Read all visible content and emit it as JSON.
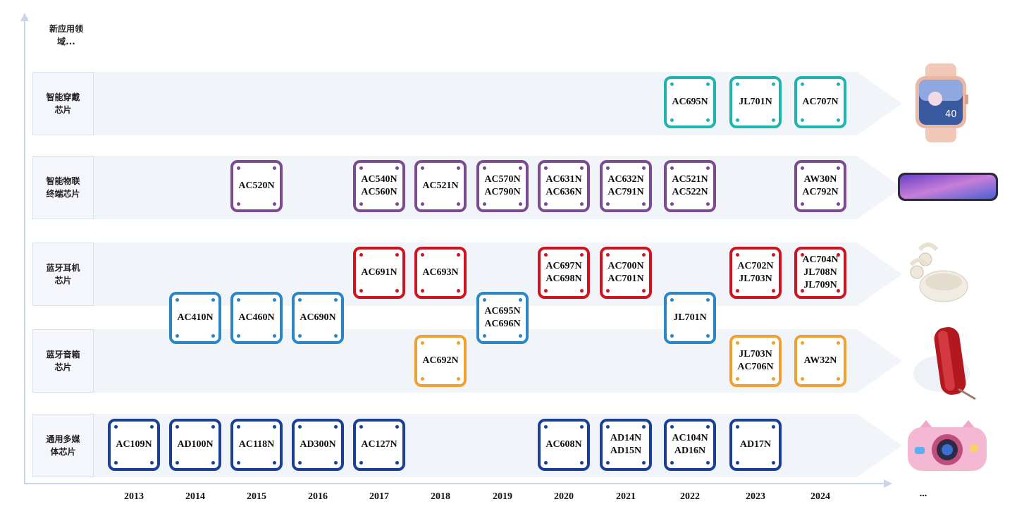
{
  "diagram": {
    "top_label": [
      "新应用领",
      "域..."
    ],
    "ellipsis": "...",
    "years": [
      "2013",
      "2014",
      "2015",
      "2016",
      "2017",
      "2018",
      "2019",
      "2020",
      "2021",
      "2022",
      "2023",
      "2024"
    ],
    "categories": [
      {
        "id": "wearable",
        "lines": [
          "智能穿戴",
          "芯片"
        ]
      },
      {
        "id": "iot",
        "lines": [
          "智能物联",
          "终端芯片"
        ]
      },
      {
        "id": "earbuds",
        "lines": [
          "蓝牙耳机",
          "芯片"
        ]
      },
      {
        "id": "speaker",
        "lines": [
          "蓝牙音箱",
          "芯片"
        ]
      },
      {
        "id": "multimedia",
        "lines": [
          "通用多媒",
          "体芯片"
        ]
      }
    ],
    "colors": {
      "wearable": "#1fb4b0",
      "iot": "#7b4a8f",
      "earbuds": "#d0141f",
      "speaker": "#f0a030",
      "multimedia": "#1a3f96",
      "blue": "#2b86c5"
    },
    "chips": [
      {
        "year": "2022",
        "row": "wearable",
        "labels": [
          "AC695N"
        ]
      },
      {
        "year": "2023",
        "row": "wearable",
        "labels": [
          "JL701N"
        ]
      },
      {
        "year": "2024",
        "row": "wearable",
        "labels": [
          "AC707N"
        ]
      },
      {
        "year": "2015",
        "row": "iot",
        "labels": [
          "AC520N"
        ]
      },
      {
        "year": "2017",
        "row": "iot",
        "labels": [
          "AC540N",
          "AC560N"
        ]
      },
      {
        "year": "2018",
        "row": "iot",
        "labels": [
          "AC521N"
        ]
      },
      {
        "year": "2019",
        "row": "iot",
        "labels": [
          "AC570N",
          "AC790N"
        ]
      },
      {
        "year": "2020",
        "row": "iot",
        "labels": [
          "AC631N",
          "AC636N"
        ]
      },
      {
        "year": "2021",
        "row": "iot",
        "labels": [
          "AC632N",
          "AC791N"
        ]
      },
      {
        "year": "2022",
        "row": "iot",
        "labels": [
          "AC521N",
          "AC522N"
        ]
      },
      {
        "year": "2024",
        "row": "iot",
        "labels": [
          "AW30N",
          "AC792N"
        ]
      },
      {
        "year": "2017",
        "row": "earbuds",
        "labels": [
          "AC691N"
        ]
      },
      {
        "year": "2018",
        "row": "earbuds",
        "labels": [
          "AC693N"
        ]
      },
      {
        "year": "2020",
        "row": "earbuds",
        "labels": [
          "AC697N",
          "AC698N"
        ]
      },
      {
        "year": "2021",
        "row": "earbuds",
        "labels": [
          "AC700N",
          "AC701N"
        ]
      },
      {
        "year": "2023",
        "row": "earbuds",
        "labels": [
          "AC702N",
          "JL703N"
        ]
      },
      {
        "year": "2024",
        "row": "earbuds",
        "labels": [
          "AC704N",
          "JL708N",
          "JL709N"
        ]
      },
      {
        "year": "2014",
        "row": "blue",
        "labels": [
          "AC410N"
        ]
      },
      {
        "year": "2015",
        "row": "blue",
        "labels": [
          "AC460N"
        ]
      },
      {
        "year": "2016",
        "row": "blue",
        "labels": [
          "AC690N"
        ]
      },
      {
        "year": "2019",
        "row": "blue",
        "labels": [
          "AC695N",
          "AC696N"
        ]
      },
      {
        "year": "2022",
        "row": "blue",
        "labels": [
          "JL701N"
        ]
      },
      {
        "year": "2018",
        "row": "speaker",
        "labels": [
          "AC692N"
        ]
      },
      {
        "year": "2023",
        "row": "speaker",
        "labels": [
          "JL703N",
          "AC706N"
        ]
      },
      {
        "year": "2024",
        "row": "speaker",
        "labels": [
          "AW32N"
        ]
      },
      {
        "year": "2013",
        "row": "multimedia",
        "labels": [
          "AC109N"
        ]
      },
      {
        "year": "2014",
        "row": "multimedia",
        "labels": [
          "AD100N"
        ]
      },
      {
        "year": "2015",
        "row": "multimedia",
        "labels": [
          "AC118N"
        ]
      },
      {
        "year": "2016",
        "row": "multimedia",
        "labels": [
          "AD300N"
        ]
      },
      {
        "year": "2017",
        "row": "multimedia",
        "labels": [
          "AC127N"
        ]
      },
      {
        "year": "2020",
        "row": "multimedia",
        "labels": [
          "AC608N"
        ]
      },
      {
        "year": "2021",
        "row": "multimedia",
        "labels": [
          "AD14N",
          "AD15N"
        ]
      },
      {
        "year": "2022",
        "row": "multimedia",
        "labels": [
          "AC104N",
          "AD16N"
        ]
      },
      {
        "year": "2023",
        "row": "multimedia",
        "labels": [
          "AD17N"
        ]
      }
    ],
    "products": [
      "smartwatch-image",
      "smartphone-image",
      "earbuds-image",
      "speaker-image",
      "kids-camera-image"
    ]
  }
}
